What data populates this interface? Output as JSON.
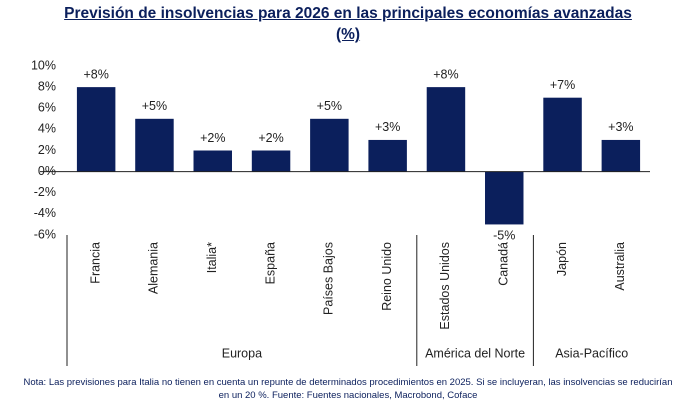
{
  "chart_data": {
    "type": "bar",
    "title": "Previsión de insolvencias para 2026 en las principales economías avanzadas (%)",
    "categories": [
      "Francia",
      "Alemania",
      "Italia*",
      "España",
      "Países Bajos",
      "Reino Unido",
      "Estados Unidos",
      "Canadá",
      "Japón",
      "Australia"
    ],
    "values": [
      8,
      5,
      2,
      2,
      5,
      3,
      8,
      -5,
      7,
      3
    ],
    "value_labels": [
      "+8%",
      "+5%",
      "+2%",
      "+2%",
      "+5%",
      "+3%",
      "+8%",
      "-5%",
      "+7%",
      "+3%"
    ],
    "color": "#0b1f5c",
    "ylim": [
      -6,
      10
    ],
    "yticks": [
      {
        "value": -6,
        "label": "-6%"
      },
      {
        "value": -4,
        "label": "-4%"
      },
      {
        "value": -2,
        "label": "-2%"
      },
      {
        "value": 0,
        "label": "0%"
      },
      {
        "value": 2,
        "label": "2%"
      },
      {
        "value": 4,
        "label": "4%"
      },
      {
        "value": 6,
        "label": "6%"
      },
      {
        "value": 8,
        "label": "8%"
      },
      {
        "value": 10,
        "label": "10%"
      }
    ],
    "groups": [
      {
        "name": "Europa",
        "size": 6
      },
      {
        "name": "América del Norte",
        "size": 2
      },
      {
        "name": "Asia-Pacífico",
        "size": 2
      }
    ],
    "note": "Nota: Las previsiones para Italia no tienen en cuenta un repunte de determinados procedimientos en 2025. Si se incluyeran, las insolvencias se reducirían en un 20 %. Fuente: Fuentes nacionales, Macrobond, Coface"
  }
}
